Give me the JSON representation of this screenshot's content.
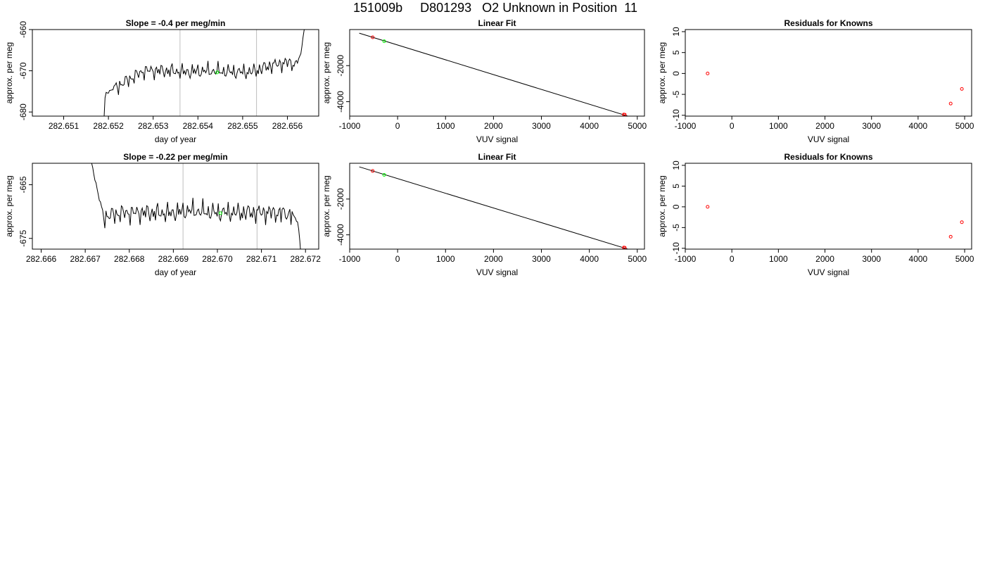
{
  "main_title": "151009b     D801293   O2 Unknown in Position  11",
  "colors": {
    "line": "#000000",
    "vline": "#bebebe",
    "known": "#ff0000",
    "unknown": "#00ff00",
    "fit": "#000000"
  },
  "chart_data": [
    {
      "type": "line",
      "title": "Slope =  -0.4  per meg/min",
      "xlabel": "day of year",
      "ylabel": "approx. per meg",
      "xlim": [
        282.6503,
        282.6567
      ],
      "ylim": [
        -681,
        -660
      ],
      "xticks": [
        "282.651",
        "282.652",
        "282.653",
        "282.654",
        "282.655",
        "282.656"
      ],
      "yticks": [
        "-680",
        "-670",
        "-660"
      ],
      "vlines": [
        282.6536,
        282.65531
      ],
      "unknown_points": [
        {
          "x": 282.65443,
          "y": -670.4
        }
      ],
      "series": [
        {
          "x_start": 282.6519,
          "x_step": 2.5e-05,
          "x_end": 282.6564,
          "baseline": [
            [
              282.6519,
              -682
            ],
            [
              282.65193,
              -675.5
            ],
            [
              282.6521,
              -674.5
            ],
            [
              282.6524,
              -672.5
            ],
            [
              282.6528,
              -670
            ],
            [
              282.6533,
              -670
            ],
            [
              282.6537,
              -670.3
            ],
            [
              282.6542,
              -670
            ],
            [
              282.6548,
              -670.3
            ],
            [
              282.6552,
              -670.3
            ],
            [
              282.6556,
              -668.8
            ],
            [
              282.656,
              -668
            ],
            [
              282.6562,
              -668.5
            ],
            [
              282.6563,
              -666
            ],
            [
              282.65637,
              -660
            ]
          ]
        }
      ]
    },
    {
      "type": "scatter",
      "title": "Linear Fit",
      "xlabel": "VUV signal",
      "ylabel": "approx. per meg",
      "xlim": [
        -1000,
        5150
      ],
      "ylim": [
        -4800,
        0
      ],
      "xticks": [
        "-1000",
        "0",
        "1000",
        "2000",
        "3000",
        "4000",
        "5000"
      ],
      "yticks": [
        "-4000",
        "-2000"
      ],
      "fit_line": [
        [
          -800,
          -200
        ],
        [
          4950,
          -4920
        ]
      ],
      "known_points": [
        [
          -520,
          -430
        ],
        [
          4720,
          -4710
        ],
        [
          4740,
          -4720
        ],
        [
          4920,
          -4880
        ]
      ],
      "unknown_points": [
        [
          -280,
          -650
        ]
      ]
    },
    {
      "type": "scatter",
      "title": "Residuals for Knowns",
      "xlabel": "VUV signal",
      "ylabel": "approx. per meg",
      "xlim": [
        -1000,
        5150
      ],
      "ylim": [
        -10.2,
        10.5
      ],
      "xticks": [
        "-1000",
        "0",
        "1000",
        "2000",
        "3000",
        "4000",
        "5000"
      ],
      "yticks": [
        "-10",
        "-5",
        "0",
        "5",
        "10"
      ],
      "known_points": [
        [
          -520,
          0
        ],
        [
          4700,
          -7.2
        ],
        [
          4940,
          -3.7
        ]
      ]
    },
    {
      "type": "line",
      "title": "Slope =  -0.22  per meg/min",
      "xlabel": "day of year",
      "ylabel": "approx. per meg",
      "xlim": [
        282.6658,
        282.6723
      ],
      "ylim": [
        -677,
        -661
      ],
      "xticks": [
        "282.666",
        "282.667",
        "282.668",
        "282.669",
        "282.670",
        "282.671",
        "282.672"
      ],
      "yticks": [
        "-675",
        "-665"
      ],
      "vlines": [
        282.66922,
        282.6709
      ],
      "unknown_points": [
        {
          "x": 282.67007,
          "y": -670.3
        }
      ],
      "series": [
        {
          "x_start": 282.66712,
          "x_step": 2.5e-05,
          "x_end": 282.67191,
          "baseline": [
            [
              282.66712,
              -660
            ],
            [
              282.66725,
              -665
            ],
            [
              282.6674,
              -671
            ],
            [
              282.6678,
              -670.3
            ],
            [
              282.6683,
              -670.2
            ],
            [
              282.6689,
              -670.3
            ],
            [
              282.6694,
              -669.8
            ],
            [
              282.6699,
              -670.2
            ],
            [
              282.6705,
              -670.2
            ],
            [
              282.6712,
              -670.2
            ],
            [
              282.6717,
              -670.5
            ],
            [
              282.67183,
              -672
            ],
            [
              282.67191,
              -679
            ]
          ]
        }
      ]
    },
    {
      "type": "scatter",
      "title": "Linear Fit",
      "xlabel": "VUV signal",
      "ylabel": "approx. per meg",
      "xlim": [
        -1000,
        5150
      ],
      "ylim": [
        -4800,
        0
      ],
      "xticks": [
        "-1000",
        "0",
        "1000",
        "2000",
        "3000",
        "4000",
        "5000"
      ],
      "yticks": [
        "-4000",
        "-2000"
      ],
      "fit_line": [
        [
          -800,
          -200
        ],
        [
          4950,
          -4920
        ]
      ],
      "known_points": [
        [
          -520,
          -430
        ],
        [
          4720,
          -4710
        ],
        [
          4740,
          -4720
        ],
        [
          4920,
          -4880
        ]
      ],
      "unknown_points": [
        [
          -280,
          -650
        ]
      ]
    },
    {
      "type": "scatter",
      "title": "Residuals for Knowns",
      "xlabel": "VUV signal",
      "ylabel": "approx. per meg",
      "xlim": [
        -1000,
        5150
      ],
      "ylim": [
        -10.2,
        10.5
      ],
      "xticks": [
        "-1000",
        "0",
        "1000",
        "2000",
        "3000",
        "4000",
        "5000"
      ],
      "yticks": [
        "-10",
        "-5",
        "0",
        "5",
        "10"
      ],
      "known_points": [
        [
          -520,
          0
        ],
        [
          4700,
          -7.2
        ],
        [
          4940,
          -3.7
        ]
      ]
    }
  ]
}
